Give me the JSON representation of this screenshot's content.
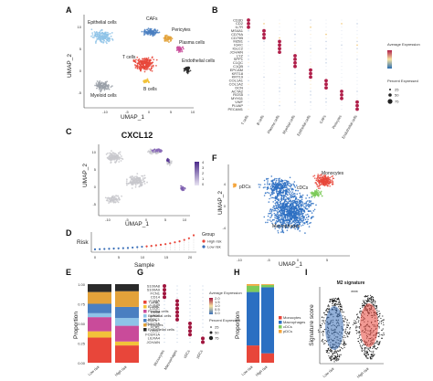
{
  "panels": {
    "A": {
      "label": "A",
      "xlabel": "UMAP_1",
      "ylabel": "UMAP_2",
      "xticks": [
        "-10",
        "-5",
        "0",
        "5",
        "10"
      ],
      "yticks": [
        "10",
        "5",
        "0",
        "-5"
      ],
      "clusters": [
        {
          "name": "Epithelial cells",
          "color": "#8ec3e8"
        },
        {
          "name": "CAFs",
          "color": "#4a7fc1"
        },
        {
          "name": "Pericytes",
          "color": "#e3a23a"
        },
        {
          "name": "Plasma cells",
          "color": "#c94b9a"
        },
        {
          "name": "T cells",
          "color": "#e8463a"
        },
        {
          "name": "Endothelial cells",
          "color": "#2a2a2a"
        },
        {
          "name": "Myeloid cells",
          "color": "#9aa0a8"
        },
        {
          "name": "B cells",
          "color": "#f2c23a"
        }
      ]
    },
    "B": {
      "label": "B",
      "genes": [
        "CD3D",
        "CD2",
        "IL7R",
        "MS4A1",
        "CD79A",
        "CD79B",
        "MZB1",
        "IGKC",
        "IGLC2",
        "JCHAIN",
        "LYZ",
        "SPP1",
        "C1QC",
        "C1QB",
        "EPCAM",
        "KRT18",
        "KRT19",
        "COL1A1",
        "COL1A2",
        "DCN",
        "ACTA2",
        "RGS5",
        "MYH11",
        "VWF",
        "PLVAP",
        "PECAM1"
      ],
      "groups": [
        "T cells",
        "B cells",
        "Plasma cells",
        "Myeloid cells",
        "Epithelial cells",
        "CAFs",
        "Pericytes",
        "Endothelial cells"
      ],
      "legend_expr_title": "Average Expression",
      "legend_pct_title": "Percent Expressed",
      "legend_pct_values": [
        "25",
        "50",
        "75"
      ]
    },
    "C": {
      "label": "C",
      "title": "CXCL12",
      "xlabel": "UMAP_1",
      "ylabel": "UMAP_2",
      "xticks": [
        "-10",
        "-5",
        "0",
        "5",
        "10"
      ],
      "yticks": [
        "10",
        "5",
        "0",
        "-5"
      ],
      "legend_values": [
        "4",
        "3",
        "2",
        "1",
        "0"
      ]
    },
    "D": {
      "label": "D",
      "ylabel": "Risk",
      "xlabel": "Sample",
      "xticks": [
        "0",
        "5",
        "10",
        "15",
        "20"
      ],
      "legend_title": "Group",
      "groups": [
        "High risk",
        "Low risk"
      ],
      "group_colors": [
        "#e8463a",
        "#3a6fb8"
      ]
    },
    "E": {
      "label": "E",
      "ylabel": "Proportion",
      "yticks": [
        "1.00",
        "0.75",
        "0.50",
        "0.25",
        "0.00"
      ],
      "categories": [
        "Low risk",
        "High risk"
      ],
      "legend": [
        "T cells",
        "B cells",
        "Plasma cells",
        "Epithelial cells",
        "CAFs",
        "Pericytes",
        "Endothelial cells"
      ],
      "legend_colors": [
        "#e8463a",
        "#f2c23a",
        "#c94b9a",
        "#8ec3e8",
        "#4a7fc1",
        "#e3a23a",
        "#2a2a2a"
      ]
    },
    "F": {
      "label": "F",
      "xlabel": "UMAP_1",
      "ylabel": "UMAP_2",
      "xticks": [
        "-10",
        "-5",
        "0",
        "5"
      ],
      "yticks": [
        "4",
        "0",
        "-4"
      ],
      "clusters": [
        {
          "name": "pDCs",
          "color": "#f4a43a"
        },
        {
          "name": "Monocytes",
          "color": "#e8463a"
        },
        {
          "name": "cDCs",
          "color": "#7ecb5a"
        },
        {
          "name": "Macrophages",
          "color": "#2b6fc2"
        }
      ]
    },
    "G": {
      "label": "G",
      "genes": [
        "S100A8",
        "S100A9",
        "FCN1",
        "CD14",
        "C1QA",
        "C1QB",
        "C1QC",
        "CD68",
        "APOE",
        "APOC1",
        "CLEC9A",
        "XCR1",
        "CD1C",
        "FCER1A",
        "LILRA4",
        "JCHAIN"
      ],
      "groups": [
        "Monocytes",
        "Macrophages",
        "cDCs",
        "pDCs"
      ],
      "legend_expr_title": "Average Expression",
      "legend_pct_title": "Percent Expressed",
      "legend_expr_values": [
        "2.0",
        "1.5",
        "1.0",
        "0.5",
        "0.0"
      ],
      "legend_pct_values": [
        "25",
        "50",
        "75"
      ]
    },
    "H": {
      "label": "H",
      "ylabel": "Proportion",
      "categories": [
        "Low risk",
        "High risk"
      ],
      "legend": [
        "Monocytes",
        "Macrophages",
        "cDCs",
        "pDCs"
      ],
      "legend_colors": [
        "#e8463a",
        "#2b6fc2",
        "#7ecb5a",
        "#f4a43a"
      ]
    },
    "I": {
      "label": "I",
      "title": "M2 signature",
      "ylabel": "Signature score",
      "categories": [
        "Low risk",
        "High risk"
      ],
      "significance": "****"
    }
  },
  "chart_data": [
    {
      "type": "scatter",
      "title": "",
      "xlabel": "Sample",
      "ylabel": "Risk",
      "series": [
        {
          "name": "Low risk",
          "x": [
            1,
            2,
            3,
            4,
            5,
            6,
            7,
            8,
            9,
            10,
            11
          ],
          "y": [
            0.05,
            0.06,
            0.07,
            0.08,
            0.09,
            0.1,
            0.11,
            0.12,
            0.14,
            0.16,
            0.18
          ]
        },
        {
          "name": "High risk",
          "x": [
            12,
            13,
            14,
            15,
            16,
            17,
            18,
            19,
            20,
            21,
            22
          ],
          "y": [
            0.2,
            0.22,
            0.25,
            0.28,
            0.31,
            0.35,
            0.4,
            0.45,
            0.52,
            0.6,
            0.75
          ]
        }
      ],
      "legend_position": "right"
    },
    {
      "type": "bar",
      "title": "",
      "ylabel": "Proportion",
      "categories": [
        "Low risk",
        "High risk"
      ],
      "ylim": [
        0,
        1
      ],
      "series": [
        {
          "name": "T cells",
          "values": [
            0.32,
            0.22
          ]
        },
        {
          "name": "B cells",
          "values": [
            0.08,
            0.05
          ]
        },
        {
          "name": "Plasma cells",
          "values": [
            0.18,
            0.2
          ]
        },
        {
          "name": "Epithelial cells",
          "values": [
            0.05,
            0.1
          ]
        },
        {
          "name": "CAFs",
          "values": [
            0.12,
            0.14
          ]
        },
        {
          "name": "Pericytes",
          "values": [
            0.15,
            0.2
          ]
        },
        {
          "name": "Endothelial cells",
          "values": [
            0.1,
            0.09
          ]
        }
      ]
    },
    {
      "type": "bar",
      "title": "",
      "ylabel": "Proportion",
      "categories": [
        "Low risk",
        "High risk"
      ],
      "ylim": [
        0,
        1
      ],
      "series": [
        {
          "name": "Monocytes",
          "values": [
            0.22,
            0.12
          ]
        },
        {
          "name": "Macrophages",
          "values": [
            0.68,
            0.84
          ]
        },
        {
          "name": "cDCs",
          "values": [
            0.08,
            0.03
          ]
        },
        {
          "name": "pDCs",
          "values": [
            0.02,
            0.01
          ]
        }
      ]
    }
  ]
}
